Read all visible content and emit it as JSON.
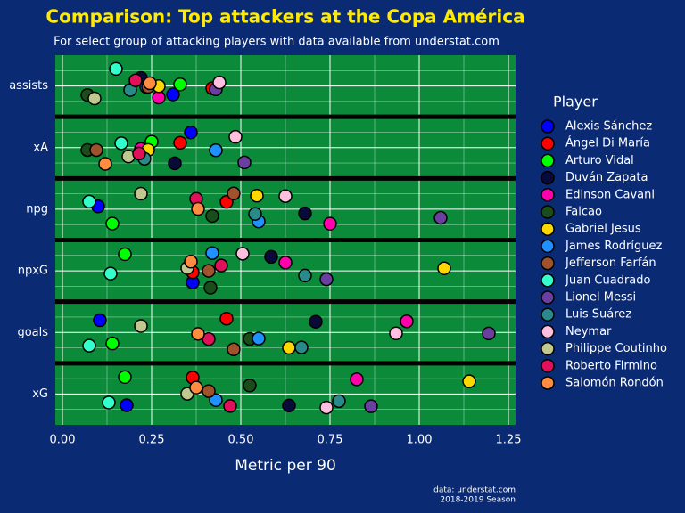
{
  "chart_data": {
    "type": "strip",
    "title": "Comparison: Top attackers at the Copa América",
    "subtitle": "For select group of attacking players with data available from understat.com",
    "x_label": "Metric per 90",
    "legend_title": "Player",
    "caption": [
      "data: understat.com",
      "2018-2019 Season"
    ],
    "categories": [
      "assists",
      "xA",
      "npg",
      "npxG",
      "goals",
      "xG"
    ],
    "xlim": [
      -0.02,
      1.27
    ],
    "xticks": [
      {
        "value": 0,
        "label": "0.00"
      },
      {
        "value": 0.25,
        "label": "0.25"
      },
      {
        "value": 0.5,
        "label": "0.50"
      },
      {
        "value": 0.75,
        "label": "0.75"
      },
      {
        "value": 1,
        "label": "1.00"
      },
      {
        "value": 1.25,
        "label": "1.25"
      }
    ],
    "grid": true,
    "legend_position": "right",
    "series": [
      {
        "name": "Alexis Sánchez",
        "color": "#0000ff",
        "values": [
          0.31,
          0.36,
          0.1,
          0.365,
          0.105,
          0.18
        ]
      },
      {
        "name": "Ángel Di María",
        "color": "#ff0000",
        "values": [
          0.42,
          0.33,
          0.46,
          0.365,
          0.46,
          0.365
        ]
      },
      {
        "name": "Arturo Vidal",
        "color": "#00ff00",
        "values": [
          0.33,
          0.25,
          0.14,
          0.175,
          0.14,
          0.175
        ]
      },
      {
        "name": "Duván Zapata",
        "color": "#0a0a3a",
        "values": [
          0.22,
          0.315,
          0.68,
          0.585,
          0.71,
          0.635
        ]
      },
      {
        "name": "Edinson Cavani",
        "color": "#ff00aa",
        "values": [
          0.27,
          0.22,
          0.75,
          0.625,
          0.965,
          0.825
        ]
      },
      {
        "name": "Falcao",
        "color": "#1a4d1a",
        "values": [
          0.07,
          0.07,
          0.42,
          0.415,
          0.525,
          0.525
        ]
      },
      {
        "name": "Gabriel Jesus",
        "color": "#ffd700",
        "values": [
          0.27,
          0.24,
          0.545,
          1.07,
          0.635,
          1.14
        ]
      },
      {
        "name": "James Rodríguez",
        "color": "#1e90ff",
        "values": [
          0.235,
          0.43,
          0.55,
          0.42,
          0.55,
          0.43
        ]
      },
      {
        "name": "Jefferson Farfán",
        "color": "#a0522d",
        "values": [
          0.24,
          0.095,
          0.48,
          0.41,
          0.48,
          0.41
        ]
      },
      {
        "name": "Juan Cuadrado",
        "color": "#33ffcc",
        "values": [
          0.15,
          0.165,
          0.075,
          0.135,
          0.075,
          0.13
        ]
      },
      {
        "name": "Lionel Messi",
        "color": "#6a3fa0",
        "values": [
          0.43,
          0.51,
          1.06,
          0.74,
          1.195,
          0.865
        ]
      },
      {
        "name": "Luis Suárez",
        "color": "#2a8a8a",
        "values": [
          0.19,
          0.23,
          0.54,
          0.68,
          0.67,
          0.775
        ]
      },
      {
        "name": "Neymar",
        "color": "#ffc0e0",
        "values": [
          0.44,
          0.485,
          0.625,
          0.505,
          0.935,
          0.74
        ]
      },
      {
        "name": "Philippe Coutinho",
        "color": "#c0c890",
        "values": [
          0.09,
          0.185,
          0.22,
          0.35,
          0.22,
          0.35
        ]
      },
      {
        "name": "Roberto Firmino",
        "color": "#e0105a",
        "values": [
          0.205,
          0.215,
          0.375,
          0.445,
          0.41,
          0.47
        ]
      },
      {
        "name": "Salomón Rondón",
        "color": "#ff8c40",
        "values": [
          0.245,
          0.12,
          0.38,
          0.36,
          0.38,
          0.375
        ]
      }
    ]
  }
}
